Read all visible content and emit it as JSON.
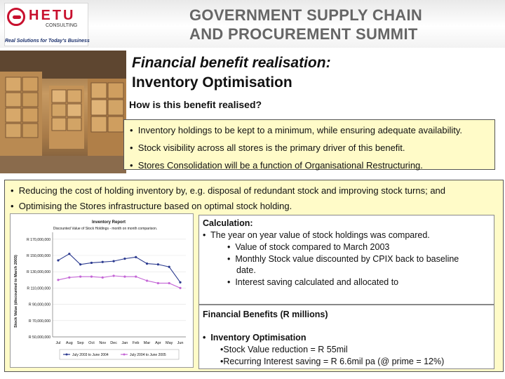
{
  "header": {
    "logo_text": "HETU",
    "logo_sub": "CONSULTING",
    "logo_tagline": "Real Solutions for Today's Business",
    "summit_line1": "GOVERNMENT SUPPLY CHAIN",
    "summit_line2": "AND PROCUREMENT SUMMIT"
  },
  "title": {
    "line1": "Financial benefit realisation:",
    "line2": "Inventory Optimisation"
  },
  "subheading": "How is this benefit realised?",
  "top_bullets": [
    "Inventory holdings to be kept to a minimum, while ensuring adequate availability.",
    "Stock visibility across all stores is the primary driver of this benefit.",
    "Stores Consolidation will be a function of Organisational Restructuring."
  ],
  "panel_bullets": [
    "Reducing the cost of holding inventory by, e.g. disposal of redundant stock and improving stock turns; and",
    "Optimising the Stores infrastructure based on optimal stock holding."
  ],
  "calculation": {
    "heading": "Calculation:",
    "item1": "The year on year value of stock holdings was compared.",
    "sub1": "Value of stock compared to March 2003",
    "sub2a": "Monthly Stock value discounted by CPIX back to baseline",
    "sub2b": "date.",
    "sub3": "Interest saving calculated and allocated to"
  },
  "financial": {
    "heading": "Financial Benefits (R millions)",
    "item": "Inventory Optimisation",
    "sub1": "Stock Value reduction = R 55mil",
    "sub2": "Recurring Interest saving = R 6.6mil pa (@ prime = 12%)"
  },
  "chart_data": {
    "type": "line",
    "title": "Inventory Report",
    "subtitle": "Discounted Value of Stock Holdings - month on month comparison.",
    "ylabel": "Stock Value (discounted to March 2003)",
    "categories": [
      "Jul",
      "Aug",
      "Sep",
      "Oct",
      "Nov",
      "Dec",
      "Jan",
      "Feb",
      "Mar",
      "Apr",
      "May",
      "Jun"
    ],
    "y_ticks": [
      "R 170,000,000",
      "R 150,000,000",
      "R 130,000,000",
      "R 110,000,000",
      "R 90,000,000",
      "R 70,000,000",
      "R 50,000,000"
    ],
    "ylim": [
      50000000,
      175000000
    ],
    "series": [
      {
        "name": "July 2003 to June 2004",
        "color": "#2b3a8f",
        "values": [
          144000000,
          152000000,
          139000000,
          141000000,
          142000000,
          143000000,
          146000000,
          148000000,
          140000000,
          139000000,
          136000000,
          117000000
        ]
      },
      {
        "name": "July 2004 to June 2005",
        "color": "#c466d6",
        "values": [
          120000000,
          123000000,
          124000000,
          124000000,
          123000000,
          125000000,
          124000000,
          124000000,
          119000000,
          116000000,
          116000000,
          110000000
        ]
      }
    ],
    "legend": "bottom"
  },
  "colors": {
    "panel_bg": "#fffbc8",
    "brand_red": "#c8102e",
    "series1": "#2b3a8f",
    "series2": "#c466d6"
  }
}
